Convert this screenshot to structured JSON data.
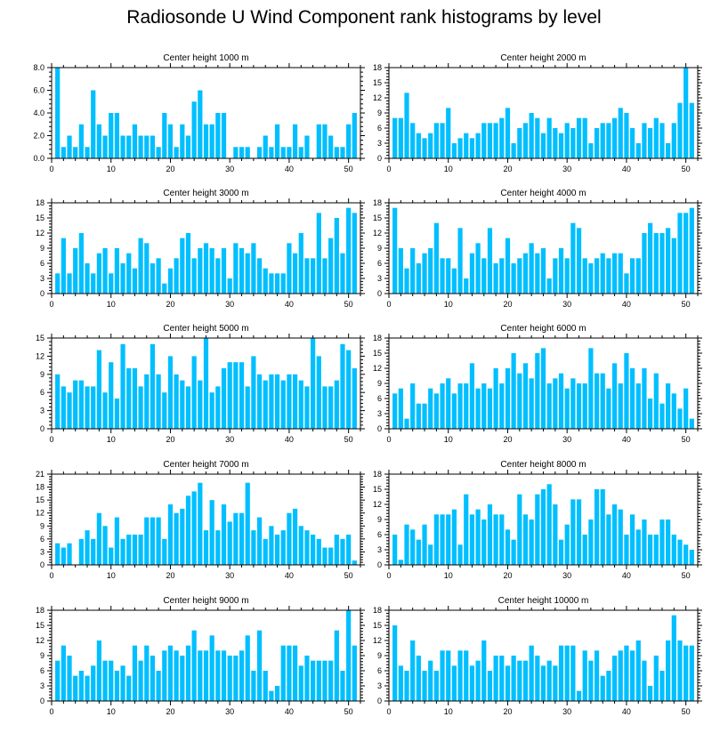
{
  "page_title": "Radiosonde U Wind Component rank histograms by level",
  "chart_data": [
    {
      "type": "bar",
      "title": "Center height 1000 m",
      "ylim": [
        0,
        8
      ],
      "yticks": [
        0,
        2,
        4,
        6,
        8
      ],
      "ytick_labels": [
        "0.0",
        "2.0",
        "4.0",
        "6.0",
        "8.0"
      ],
      "yminor": 0.4,
      "xlim": [
        0,
        52
      ],
      "xticks": [
        0,
        10,
        20,
        30,
        40,
        50
      ],
      "xtick_labels": [
        "0",
        "10",
        "20",
        "30",
        "40",
        "50"
      ],
      "bar_color": "#00bfff",
      "x": [
        1,
        2,
        3,
        4,
        5,
        6,
        7,
        8,
        9,
        10,
        11,
        12,
        13,
        14,
        15,
        16,
        17,
        18,
        19,
        20,
        21,
        22,
        23,
        24,
        25,
        26,
        27,
        28,
        29,
        30,
        31,
        32,
        33,
        34,
        35,
        36,
        37,
        38,
        39,
        40,
        41,
        42,
        43,
        44,
        45,
        46,
        47,
        48,
        49,
        50,
        51
      ],
      "values": [
        8,
        1,
        2,
        1,
        3,
        1,
        6,
        3,
        2,
        4,
        4,
        2,
        2,
        3,
        2,
        2,
        2,
        1,
        4,
        3,
        1,
        3,
        2,
        5,
        6,
        3,
        3,
        4,
        4,
        0,
        1,
        1,
        1,
        0,
        1,
        2,
        1,
        3,
        1,
        1,
        3,
        1,
        2,
        0,
        3,
        3,
        2,
        1,
        1,
        3,
        4
      ]
    },
    {
      "type": "bar",
      "title": "Center height 2000 m",
      "ylim": [
        0,
        18
      ],
      "yticks": [
        0,
        3,
        6,
        9,
        12,
        15,
        18
      ],
      "ytick_labels": [
        "0",
        "3",
        "6",
        "9",
        "12",
        "15",
        "18"
      ],
      "yminor": 0.6,
      "xlim": [
        0,
        52
      ],
      "xticks": [
        0,
        10,
        20,
        30,
        40,
        50
      ],
      "xtick_labels": [
        "0",
        "10",
        "20",
        "30",
        "40",
        "50"
      ],
      "bar_color": "#00bfff",
      "x": [
        1,
        2,
        3,
        4,
        5,
        6,
        7,
        8,
        9,
        10,
        11,
        12,
        13,
        14,
        15,
        16,
        17,
        18,
        19,
        20,
        21,
        22,
        23,
        24,
        25,
        26,
        27,
        28,
        29,
        30,
        31,
        32,
        33,
        34,
        35,
        36,
        37,
        38,
        39,
        40,
        41,
        42,
        43,
        44,
        45,
        46,
        47,
        48,
        49,
        50,
        51
      ],
      "values": [
        8,
        8,
        13,
        7,
        5,
        4,
        5,
        7,
        7,
        10,
        3,
        4,
        5,
        4,
        5,
        7,
        7,
        7,
        8,
        10,
        3,
        6,
        7,
        9,
        8,
        5,
        8,
        6,
        5,
        7,
        6,
        8,
        8,
        3,
        6,
        7,
        7,
        8,
        10,
        9,
        6,
        3,
        7,
        6,
        8,
        7,
        3,
        7,
        11,
        18,
        11
      ]
    },
    {
      "type": "bar",
      "title": "Center height 3000 m",
      "ylim": [
        0,
        18
      ],
      "yticks": [
        0,
        3,
        6,
        9,
        12,
        15,
        18
      ],
      "ytick_labels": [
        "0",
        "3",
        "6",
        "9",
        "12",
        "15",
        "18"
      ],
      "yminor": 0.6,
      "xlim": [
        0,
        52
      ],
      "xticks": [
        0,
        10,
        20,
        30,
        40,
        50
      ],
      "xtick_labels": [
        "0",
        "10",
        "20",
        "30",
        "40",
        "50"
      ],
      "bar_color": "#00bfff",
      "x": [
        1,
        2,
        3,
        4,
        5,
        6,
        7,
        8,
        9,
        10,
        11,
        12,
        13,
        14,
        15,
        16,
        17,
        18,
        19,
        20,
        21,
        22,
        23,
        24,
        25,
        26,
        27,
        28,
        29,
        30,
        31,
        32,
        33,
        34,
        35,
        36,
        37,
        38,
        39,
        40,
        41,
        42,
        43,
        44,
        45,
        46,
        47,
        48,
        49,
        50,
        51
      ],
      "values": [
        4,
        11,
        4,
        9,
        12,
        6,
        4,
        8,
        9,
        4,
        9,
        6,
        8,
        5,
        11,
        10,
        6,
        7,
        2,
        5,
        7,
        11,
        12,
        7,
        9,
        10,
        9,
        7,
        9,
        3,
        10,
        9,
        8,
        10,
        7,
        5,
        4,
        4,
        4,
        10,
        8,
        12,
        7,
        7,
        16,
        7,
        11,
        15,
        8,
        17,
        16
      ]
    },
    {
      "type": "bar",
      "title": "Center height 4000 m",
      "ylim": [
        0,
        18
      ],
      "yticks": [
        0,
        3,
        6,
        9,
        12,
        15,
        18
      ],
      "ytick_labels": [
        "0",
        "3",
        "6",
        "9",
        "12",
        "15",
        "18"
      ],
      "yminor": 0.6,
      "xlim": [
        0,
        52
      ],
      "xticks": [
        0,
        10,
        20,
        30,
        40,
        50
      ],
      "xtick_labels": [
        "0",
        "10",
        "20",
        "30",
        "40",
        "50"
      ],
      "bar_color": "#00bfff",
      "x": [
        1,
        2,
        3,
        4,
        5,
        6,
        7,
        8,
        9,
        10,
        11,
        12,
        13,
        14,
        15,
        16,
        17,
        18,
        19,
        20,
        21,
        22,
        23,
        24,
        25,
        26,
        27,
        28,
        29,
        30,
        31,
        32,
        33,
        34,
        35,
        36,
        37,
        38,
        39,
        40,
        41,
        42,
        43,
        44,
        45,
        46,
        47,
        48,
        49,
        50,
        51
      ],
      "values": [
        17,
        9,
        5,
        9,
        6,
        8,
        9,
        14,
        7,
        7,
        5,
        13,
        3,
        8,
        10,
        7,
        13,
        6,
        7,
        11,
        6,
        7,
        8,
        10,
        8,
        9,
        3,
        7,
        9,
        7,
        14,
        13,
        7,
        6,
        7,
        8,
        7,
        8,
        8,
        4,
        7,
        7,
        12,
        14,
        12,
        12,
        13,
        11,
        16,
        16,
        17
      ]
    },
    {
      "type": "bar",
      "title": "Center height 5000 m",
      "ylim": [
        0,
        15
      ],
      "yticks": [
        0,
        3,
        6,
        9,
        12,
        15
      ],
      "ytick_labels": [
        "0",
        "3",
        "6",
        "9",
        "12",
        "15"
      ],
      "yminor": 0.6,
      "xlim": [
        0,
        52
      ],
      "xticks": [
        0,
        10,
        20,
        30,
        40,
        50
      ],
      "xtick_labels": [
        "0",
        "10",
        "20",
        "30",
        "40",
        "50"
      ],
      "bar_color": "#00bfff",
      "x": [
        1,
        2,
        3,
        4,
        5,
        6,
        7,
        8,
        9,
        10,
        11,
        12,
        13,
        14,
        15,
        16,
        17,
        18,
        19,
        20,
        21,
        22,
        23,
        24,
        25,
        26,
        27,
        28,
        29,
        30,
        31,
        32,
        33,
        34,
        35,
        36,
        37,
        38,
        39,
        40,
        41,
        42,
        43,
        44,
        45,
        46,
        47,
        48,
        49,
        50,
        51
      ],
      "values": [
        9,
        7,
        6,
        8,
        8,
        7,
        7,
        13,
        6,
        11,
        5,
        14,
        10,
        10,
        7,
        9,
        14,
        9,
        6,
        12,
        9,
        8,
        7,
        12,
        8,
        15,
        6,
        7,
        10,
        11,
        11,
        11,
        7,
        12,
        9,
        8,
        9,
        9,
        8,
        9,
        9,
        8,
        7,
        15,
        12,
        7,
        7,
        8,
        14,
        13,
        10
      ]
    },
    {
      "type": "bar",
      "title": "Center height 6000 m",
      "ylim": [
        0,
        18
      ],
      "yticks": [
        0,
        3,
        6,
        9,
        12,
        15,
        18
      ],
      "ytick_labels": [
        "0",
        "3",
        "6",
        "9",
        "12",
        "15",
        "18"
      ],
      "yminor": 0.6,
      "xlim": [
        0,
        52
      ],
      "xticks": [
        0,
        10,
        20,
        30,
        40,
        50
      ],
      "xtick_labels": [
        "0",
        "10",
        "20",
        "30",
        "40",
        "50"
      ],
      "bar_color": "#00bfff",
      "x": [
        1,
        2,
        3,
        4,
        5,
        6,
        7,
        8,
        9,
        10,
        11,
        12,
        13,
        14,
        15,
        16,
        17,
        18,
        19,
        20,
        21,
        22,
        23,
        24,
        25,
        26,
        27,
        28,
        29,
        30,
        31,
        32,
        33,
        34,
        35,
        36,
        37,
        38,
        39,
        40,
        41,
        42,
        43,
        44,
        45,
        46,
        47,
        48,
        49,
        50,
        51
      ],
      "values": [
        7,
        8,
        2,
        9,
        5,
        5,
        8,
        7,
        9,
        10,
        7,
        9,
        9,
        13,
        8,
        9,
        8,
        12,
        9,
        12,
        15,
        11,
        13,
        10,
        15,
        16,
        9,
        10,
        11,
        8,
        10,
        9,
        9,
        16,
        11,
        11,
        8,
        13,
        9,
        15,
        12,
        9,
        12,
        6,
        11,
        5,
        9,
        7,
        4,
        8,
        2
      ]
    },
    {
      "type": "bar",
      "title": "Center height 7000 m",
      "ylim": [
        0,
        21
      ],
      "yticks": [
        0,
        3,
        6,
        9,
        12,
        15,
        18,
        21
      ],
      "ytick_labels": [
        "0",
        "3",
        "6",
        "9",
        "12",
        "15",
        "18",
        "21"
      ],
      "yminor": 0.6,
      "xlim": [
        0,
        52
      ],
      "xticks": [
        0,
        10,
        20,
        30,
        40,
        50
      ],
      "xtick_labels": [
        "0",
        "10",
        "20",
        "30",
        "40",
        "50"
      ],
      "bar_color": "#00bfff",
      "x": [
        1,
        2,
        3,
        4,
        5,
        6,
        7,
        8,
        9,
        10,
        11,
        12,
        13,
        14,
        15,
        16,
        17,
        18,
        19,
        20,
        21,
        22,
        23,
        24,
        25,
        26,
        27,
        28,
        29,
        30,
        31,
        32,
        33,
        34,
        35,
        36,
        37,
        38,
        39,
        40,
        41,
        42,
        43,
        44,
        45,
        46,
        47,
        48,
        49,
        50,
        51
      ],
      "values": [
        5,
        4,
        5,
        0,
        6,
        8,
        6,
        12,
        9,
        4,
        11,
        6,
        7,
        7,
        7,
        11,
        11,
        11,
        6,
        14,
        12,
        13,
        16,
        17,
        19,
        8,
        15,
        8,
        14,
        10,
        12,
        12,
        19,
        8,
        11,
        6,
        9,
        7,
        8,
        12,
        13,
        9,
        8,
        7,
        6,
        4,
        4,
        7,
        6,
        7,
        1
      ]
    },
    {
      "type": "bar",
      "title": "Center height 8000 m",
      "ylim": [
        0,
        18
      ],
      "yticks": [
        0,
        3,
        6,
        9,
        12,
        15,
        18
      ],
      "ytick_labels": [
        "0",
        "3",
        "6",
        "9",
        "12",
        "15",
        "18"
      ],
      "yminor": 0.6,
      "xlim": [
        0,
        52
      ],
      "xticks": [
        0,
        10,
        20,
        30,
        40,
        50
      ],
      "xtick_labels": [
        "0",
        "10",
        "20",
        "30",
        "40",
        "50"
      ],
      "bar_color": "#00bfff",
      "x": [
        1,
        2,
        3,
        4,
        5,
        6,
        7,
        8,
        9,
        10,
        11,
        12,
        13,
        14,
        15,
        16,
        17,
        18,
        19,
        20,
        21,
        22,
        23,
        24,
        25,
        26,
        27,
        28,
        29,
        30,
        31,
        32,
        33,
        34,
        35,
        36,
        37,
        38,
        39,
        40,
        41,
        42,
        43,
        44,
        45,
        46,
        47,
        48,
        49,
        50,
        51
      ],
      "values": [
        6,
        1,
        8,
        7,
        5,
        8,
        4,
        10,
        10,
        10,
        11,
        4,
        14,
        10,
        11,
        9,
        12,
        10,
        10,
        7,
        5,
        14,
        10,
        9,
        14,
        15,
        16,
        12,
        5,
        8,
        13,
        13,
        6,
        9,
        15,
        15,
        10,
        12,
        11,
        6,
        10,
        7,
        9,
        6,
        6,
        9,
        9,
        6,
        5,
        4,
        3
      ]
    },
    {
      "type": "bar",
      "title": "Center height 9000 m",
      "ylim": [
        0,
        18
      ],
      "yticks": [
        0,
        3,
        6,
        9,
        12,
        15,
        18
      ],
      "ytick_labels": [
        "0",
        "3",
        "6",
        "9",
        "12",
        "15",
        "18"
      ],
      "yminor": 0.6,
      "xlim": [
        0,
        52
      ],
      "xticks": [
        0,
        10,
        20,
        30,
        40,
        50
      ],
      "xtick_labels": [
        "0",
        "10",
        "20",
        "30",
        "40",
        "50"
      ],
      "bar_color": "#00bfff",
      "x": [
        1,
        2,
        3,
        4,
        5,
        6,
        7,
        8,
        9,
        10,
        11,
        12,
        13,
        14,
        15,
        16,
        17,
        18,
        19,
        20,
        21,
        22,
        23,
        24,
        25,
        26,
        27,
        28,
        29,
        30,
        31,
        32,
        33,
        34,
        35,
        36,
        37,
        38,
        39,
        40,
        41,
        42,
        43,
        44,
        45,
        46,
        47,
        48,
        49,
        50,
        51
      ],
      "values": [
        8,
        11,
        9,
        5,
        6,
        5,
        7,
        12,
        8,
        8,
        6,
        7,
        5,
        11,
        8,
        11,
        9,
        6,
        10,
        11,
        10,
        9,
        11,
        14,
        10,
        10,
        13,
        10,
        10,
        9,
        9,
        10,
        13,
        6,
        14,
        6,
        2,
        3,
        11,
        11,
        11,
        7,
        9,
        8,
        8,
        8,
        8,
        14,
        6,
        18,
        11
      ]
    },
    {
      "type": "bar",
      "title": "Center height 10000 m",
      "ylim": [
        0,
        18
      ],
      "yticks": [
        0,
        3,
        6,
        9,
        12,
        15,
        18
      ],
      "ytick_labels": [
        "0",
        "3",
        "6",
        "9",
        "12",
        "15",
        "18"
      ],
      "yminor": 0.6,
      "xlim": [
        0,
        52
      ],
      "xticks": [
        0,
        10,
        20,
        30,
        40,
        50
      ],
      "xtick_labels": [
        "0",
        "10",
        "20",
        "30",
        "40",
        "50"
      ],
      "bar_color": "#00bfff",
      "x": [
        1,
        2,
        3,
        4,
        5,
        6,
        7,
        8,
        9,
        10,
        11,
        12,
        13,
        14,
        15,
        16,
        17,
        18,
        19,
        20,
        21,
        22,
        23,
        24,
        25,
        26,
        27,
        28,
        29,
        30,
        31,
        32,
        33,
        34,
        35,
        36,
        37,
        38,
        39,
        40,
        41,
        42,
        43,
        44,
        45,
        46,
        47,
        48,
        49,
        50,
        51
      ],
      "values": [
        15,
        7,
        6,
        12,
        9,
        6,
        8,
        6,
        10,
        10,
        7,
        10,
        10,
        7,
        8,
        12,
        6,
        9,
        9,
        7,
        9,
        8,
        8,
        11,
        9,
        7,
        8,
        7,
        11,
        11,
        11,
        2,
        10,
        8,
        10,
        5,
        6,
        9,
        10,
        11,
        10,
        12,
        8,
        3,
        9,
        6,
        12,
        17,
        12,
        11,
        11
      ]
    }
  ]
}
